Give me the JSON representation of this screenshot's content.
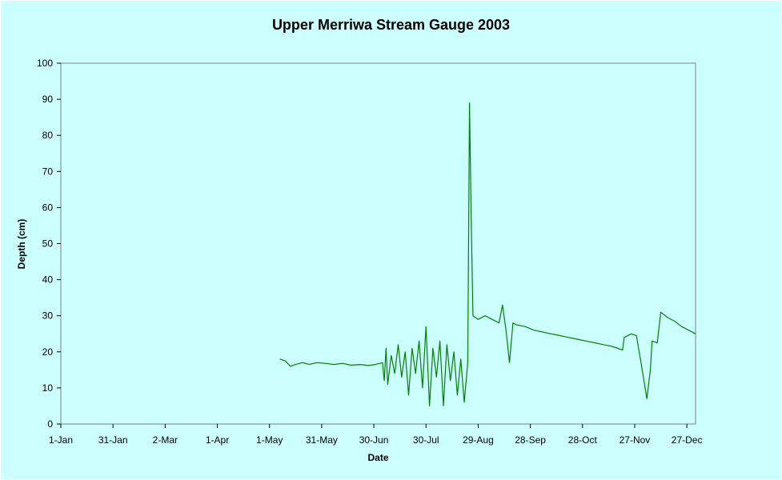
{
  "chart_data": {
    "type": "line",
    "title": "Upper Merriwa Stream Gauge 2003",
    "xlabel": "Date",
    "ylabel": "Depth (cm)",
    "ylim": [
      0,
      100
    ],
    "y_ticks": [
      0,
      10,
      20,
      30,
      40,
      50,
      60,
      70,
      80,
      90,
      100
    ],
    "xlim": [
      "2003-01-01",
      "2004-01-01"
    ],
    "x_ticks": [
      "1-Jan",
      "31-Jan",
      "2-Mar",
      "1-Apr",
      "1-May",
      "31-May",
      "30-Jun",
      "30-Jul",
      "29-Aug",
      "28-Sep",
      "28-Oct",
      "27-Nov",
      "27-Dec"
    ],
    "x_tick_dates": [
      "2003-01-01",
      "2003-01-31",
      "2003-03-02",
      "2003-04-01",
      "2003-05-01",
      "2003-05-31",
      "2003-06-30",
      "2003-07-30",
      "2003-08-29",
      "2003-09-28",
      "2003-10-28",
      "2003-11-27",
      "2003-12-27"
    ],
    "grid": false,
    "legend": "none",
    "series": [
      {
        "color": "#008000",
        "points": [
          [
            "2003-05-07",
            18
          ],
          [
            "2003-05-10",
            17.5
          ],
          [
            "2003-05-13",
            16
          ],
          [
            "2003-05-16",
            16.5
          ],
          [
            "2003-05-20",
            17
          ],
          [
            "2003-05-24",
            16.5
          ],
          [
            "2003-05-28",
            17
          ],
          [
            "2003-06-02",
            16.8
          ],
          [
            "2003-06-07",
            16.5
          ],
          [
            "2003-06-12",
            16.8
          ],
          [
            "2003-06-17",
            16.3
          ],
          [
            "2003-06-22",
            16.5
          ],
          [
            "2003-06-27",
            16.2
          ],
          [
            "2003-07-01",
            16.5
          ],
          [
            "2003-07-05",
            17
          ],
          [
            "2003-07-06",
            12
          ],
          [
            "2003-07-07",
            21
          ],
          [
            "2003-07-08",
            11
          ],
          [
            "2003-07-10",
            19
          ],
          [
            "2003-07-12",
            14
          ],
          [
            "2003-07-14",
            22
          ],
          [
            "2003-07-16",
            13
          ],
          [
            "2003-07-18",
            20
          ],
          [
            "2003-07-20",
            8
          ],
          [
            "2003-07-22",
            21
          ],
          [
            "2003-07-24",
            14
          ],
          [
            "2003-07-26",
            23
          ],
          [
            "2003-07-28",
            10
          ],
          [
            "2003-07-30",
            27
          ],
          [
            "2003-08-01",
            5
          ],
          [
            "2003-08-03",
            21
          ],
          [
            "2003-08-05",
            13
          ],
          [
            "2003-08-07",
            23
          ],
          [
            "2003-08-09",
            5
          ],
          [
            "2003-08-11",
            22
          ],
          [
            "2003-08-13",
            12
          ],
          [
            "2003-08-15",
            20
          ],
          [
            "2003-08-17",
            8
          ],
          [
            "2003-08-19",
            18
          ],
          [
            "2003-08-21",
            6
          ],
          [
            "2003-08-23",
            17
          ],
          [
            "2003-08-24",
            89
          ],
          [
            "2003-08-25",
            57
          ],
          [
            "2003-08-26",
            30
          ],
          [
            "2003-08-29",
            29
          ],
          [
            "2003-09-02",
            30
          ],
          [
            "2003-09-06",
            29
          ],
          [
            "2003-09-10",
            28
          ],
          [
            "2003-09-12",
            33
          ],
          [
            "2003-09-14",
            26
          ],
          [
            "2003-09-16",
            17
          ],
          [
            "2003-09-18",
            28
          ],
          [
            "2003-09-20",
            27.5
          ],
          [
            "2003-09-25",
            27
          ],
          [
            "2003-09-30",
            26
          ],
          [
            "2003-10-05",
            25.5
          ],
          [
            "2003-10-10",
            25
          ],
          [
            "2003-10-15",
            24.5
          ],
          [
            "2003-10-20",
            24
          ],
          [
            "2003-10-25",
            23.5
          ],
          [
            "2003-10-30",
            23
          ],
          [
            "2003-11-04",
            22.5
          ],
          [
            "2003-11-09",
            22
          ],
          [
            "2003-11-14",
            21.5
          ],
          [
            "2003-11-20",
            20.5
          ],
          [
            "2003-11-21",
            24
          ],
          [
            "2003-11-25",
            25
          ],
          [
            "2003-11-28",
            24.5
          ],
          [
            "2003-12-01",
            16
          ],
          [
            "2003-12-04",
            7
          ],
          [
            "2003-12-06",
            15
          ],
          [
            "2003-12-07",
            23
          ],
          [
            "2003-12-10",
            22.5
          ],
          [
            "2003-12-12",
            31
          ],
          [
            "2003-12-16",
            29.5
          ],
          [
            "2003-12-20",
            28.5
          ],
          [
            "2003-12-24",
            27
          ],
          [
            "2003-12-28",
            26
          ],
          [
            "2004-01-01",
            25
          ]
        ]
      }
    ]
  }
}
